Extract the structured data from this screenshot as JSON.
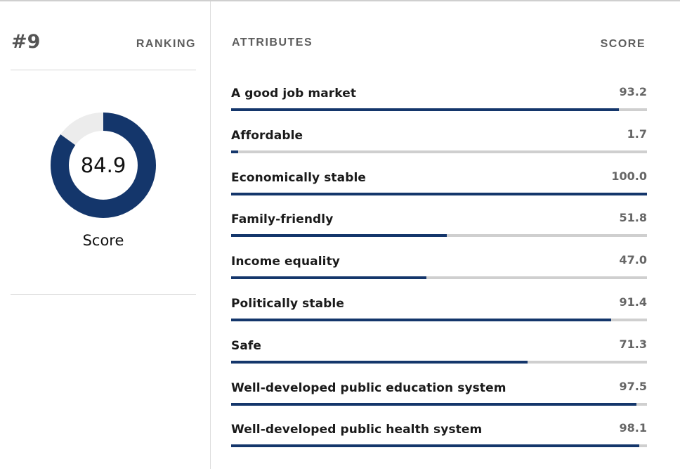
{
  "ranking": {
    "rank": "#9",
    "label": "RANKING"
  },
  "score": {
    "value": 84.9,
    "value_text": "84.9",
    "caption": "Score"
  },
  "attributes": {
    "header": "ATTRIBUTES",
    "score_header": "SCORE",
    "items": [
      {
        "label": "A good job market",
        "score": "93.2",
        "value": 93.2
      },
      {
        "label": "Affordable",
        "score": "1.7",
        "value": 1.7
      },
      {
        "label": "Economically stable",
        "score": "100.0",
        "value": 100.0
      },
      {
        "label": "Family-friendly",
        "score": "51.8",
        "value": 51.8
      },
      {
        "label": "Income equality",
        "score": "47.0",
        "value": 47.0
      },
      {
        "label": "Politically stable",
        "score": "91.4",
        "value": 91.4
      },
      {
        "label": "Safe",
        "score": "71.3",
        "value": 71.3
      },
      {
        "label": "Well-developed public education system",
        "score": "97.5",
        "value": 97.5
      },
      {
        "label": "Well-developed public health system",
        "score": "98.1",
        "value": 98.1
      }
    ]
  },
  "colors": {
    "accent": "#14366b",
    "track": "#cfcfcf",
    "donut_remainder": "#ececec"
  }
}
